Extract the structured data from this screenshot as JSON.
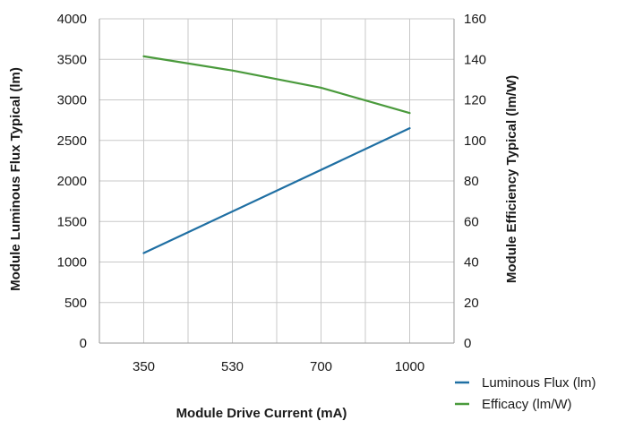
{
  "chart_data": {
    "type": "line",
    "xlabel": "Module Drive Current (mA)",
    "ylabel_left": "Module Luminous Flux Typical (lm)",
    "ylabel_right": "Module Efficiency Typical (lm/W)",
    "categories": [
      "350",
      "530",
      "700",
      "1000"
    ],
    "ylim_left": [
      0,
      4000
    ],
    "yticks_left": [
      "0",
      "500",
      "1000",
      "1500",
      "2000",
      "2500",
      "3000",
      "3500",
      "4000"
    ],
    "ylim_right": [
      0,
      160
    ],
    "yticks_right": [
      "0",
      "20",
      "40",
      "60",
      "80",
      "100",
      "120",
      "140",
      "160"
    ],
    "grid": true,
    "legend_position": "bottom-right",
    "series": [
      {
        "name": "Luminous Flux (lm)",
        "axis": "left",
        "color": "#1f6fa3",
        "x": [
          350,
          1000
        ],
        "values": [
          1110,
          2650
        ]
      },
      {
        "name": "Efficacy (lm/W)",
        "axis": "right",
        "color": "#4a9a3c",
        "x": [
          350,
          530,
          700,
          1000
        ],
        "values": [
          141.5,
          134.5,
          126,
          113.5
        ]
      }
    ]
  }
}
